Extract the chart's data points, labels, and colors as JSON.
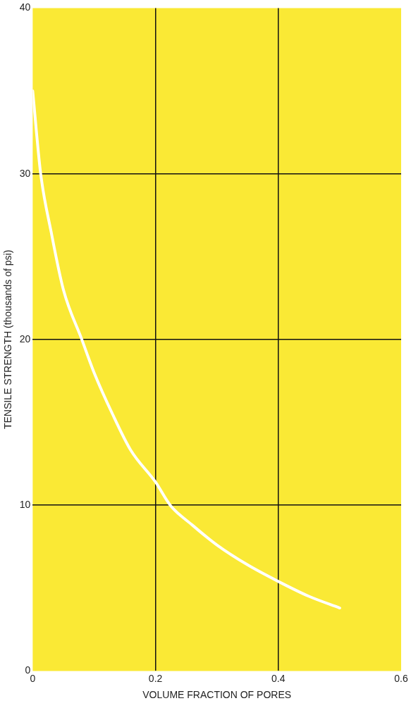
{
  "chart_data": {
    "type": "line",
    "xlabel": "VOLUME FRACTION OF PORES",
    "ylabel": "TENSILE STRENGTH (thousands of psi)",
    "x": [
      0,
      0.013,
      0.03,
      0.05,
      0.08,
      0.1,
      0.13,
      0.16,
      0.2,
      0.224,
      0.26,
      0.3,
      0.35,
      0.4,
      0.45,
      0.5
    ],
    "series": [
      {
        "color": "#ffffff",
        "values": [
          35,
          30,
          26.5,
          23,
          20,
          18,
          15.5,
          13.3,
          11.4,
          10,
          8.8,
          7.6,
          6.4,
          5.4,
          4.5,
          3.8
        ]
      }
    ],
    "xlim": [
      0,
      0.6
    ],
    "xticks": [
      0,
      0.2,
      0.4,
      0.6
    ],
    "ylim": [
      0,
      40
    ],
    "yticks": [
      0,
      10,
      20,
      30,
      40
    ],
    "grid": true
  }
}
